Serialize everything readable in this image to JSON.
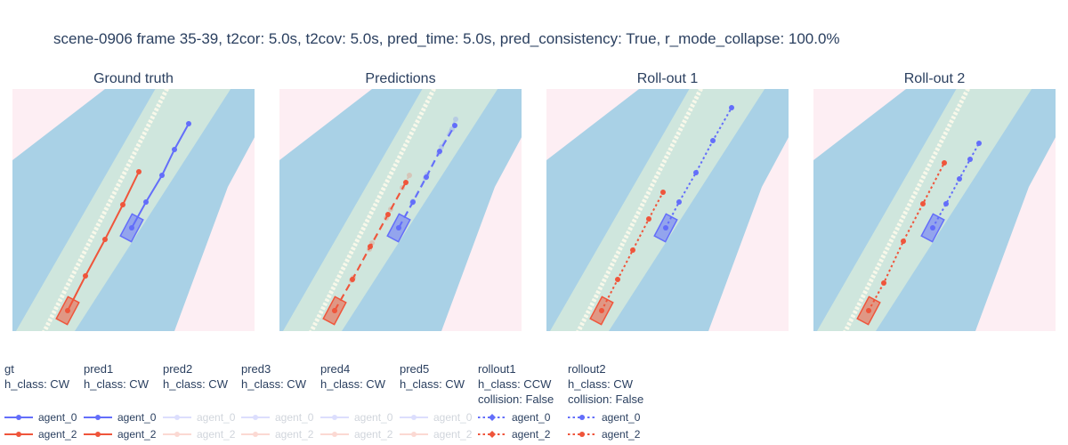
{
  "title": "scene-0906 frame 35-39, t2cor: 5.0s, t2cov: 5.0s, pred_time: 5.0s, pred_consistency: True, r_mode_collapse: 100.0%",
  "colors": {
    "background": "#fdeef3",
    "lane": "#a9d1e6",
    "drivable": "#cfe6dd",
    "divider": "#f8f8ea",
    "agent_0": "#636efa",
    "agent_2": "#ef553b"
  },
  "chart_data": [
    {
      "type": "scatter",
      "title": "Ground truth",
      "series": [
        {
          "name": "agent_0",
          "style": "solid",
          "opacity": 1,
          "x": [
            0.0,
            16.0,
            34.0,
            48.0,
            64.0
          ],
          "y": [
            0.0,
            29.0,
            59.0,
            88.0,
            117.0
          ]
        },
        {
          "name": "agent_2",
          "style": "solid",
          "opacity": 1,
          "x": [
            0.0,
            20.0,
            42.0,
            62.0,
            80.0
          ],
          "y": [
            0.0,
            39.0,
            80.0,
            119.0,
            156.0
          ]
        }
      ]
    },
    {
      "type": "scatter",
      "title": "Predictions",
      "series": [
        {
          "name": "agent_0",
          "style": "dash",
          "opacity": 1,
          "x": [
            0.0,
            16.0,
            31.0,
            46.0,
            63.0
          ],
          "y": [
            0.0,
            29.0,
            57.0,
            86.0,
            115.0
          ]
        },
        {
          "name": "agent_2",
          "style": "dash",
          "opacity": 1,
          "x": [
            0.0,
            20.0,
            40.0,
            60.0,
            80.0
          ],
          "y": [
            0.0,
            35.0,
            72.0,
            108.0,
            144.0
          ]
        },
        {
          "name": "agent_0",
          "style": "dash",
          "opacity": 0.22,
          "x": [
            0.0,
            16.0,
            32.0,
            48.0,
            64.0
          ],
          "y": [
            0.0,
            30.0,
            60.0,
            91.0,
            122.0
          ]
        },
        {
          "name": "agent_0",
          "style": "dash",
          "opacity": 0.22,
          "x": [
            0.0,
            15.0,
            30.0,
            45.0,
            60.0
          ],
          "y": [
            0.0,
            28.0,
            56.0,
            84.0,
            111.0
          ]
        },
        {
          "name": "agent_2",
          "style": "dash",
          "opacity": 0.22,
          "x": [
            0.0,
            21.0,
            42.0,
            63.0,
            84.0
          ],
          "y": [
            0.0,
            37.0,
            76.0,
            114.0,
            152.0
          ]
        },
        {
          "name": "agent_2",
          "style": "dash",
          "opacity": 0.22,
          "x": [
            0.0,
            19.0,
            39.0,
            58.0,
            76.0
          ],
          "y": [
            0.0,
            34.0,
            69.0,
            104.0,
            138.0
          ]
        }
      ]
    },
    {
      "type": "scatter",
      "title": "Roll-out 1",
      "series": [
        {
          "name": "agent_0",
          "style": "dot",
          "opacity": 1,
          "x": [
            0.0,
            15.0,
            34.0,
            53.0,
            74.0
          ],
          "y": [
            0.0,
            29.0,
            62.0,
            98.0,
            135.0
          ]
        },
        {
          "name": "agent_2",
          "style": "dot",
          "opacity": 1,
          "x": [
            0.0,
            18.0,
            35.0,
            53.0,
            69.0
          ],
          "y": [
            0.0,
            35.0,
            68.0,
            103.0,
            133.0
          ]
        }
      ]
    },
    {
      "type": "scatter",
      "title": "Roll-out 2",
      "series": [
        {
          "name": "agent_0",
          "style": "dot",
          "opacity": 1,
          "x": [
            0.0,
            15.0,
            30.0,
            42.0,
            52.0
          ],
          "y": [
            0.0,
            27.0,
            55.0,
            77.0,
            95.0
          ]
        },
        {
          "name": "agent_2",
          "style": "dot",
          "opacity": 1,
          "x": [
            0.0,
            17.0,
            39.0,
            61.0,
            85.0
          ],
          "y": [
            0.0,
            31.0,
            78.0,
            120.0,
            166.0
          ]
        }
      ]
    }
  ],
  "legend": [
    {
      "title": "gt",
      "lines": [
        "h_class: CW"
      ],
      "style": "solid",
      "opacity": 1,
      "items": [
        "agent_0",
        "agent_2"
      ]
    },
    {
      "title": "pred1",
      "lines": [
        "h_class: CW"
      ],
      "style": "solid",
      "opacity": 1,
      "items": [
        "agent_0",
        "agent_2"
      ]
    },
    {
      "title": "pred2",
      "lines": [
        "h_class: CW"
      ],
      "style": "solid",
      "opacity": 0.22,
      "items": [
        "agent_0",
        "agent_2"
      ]
    },
    {
      "title": "pred3",
      "lines": [
        "h_class: CW"
      ],
      "style": "solid",
      "opacity": 0.22,
      "items": [
        "agent_0",
        "agent_2"
      ]
    },
    {
      "title": "pred4",
      "lines": [
        "h_class: CW"
      ],
      "style": "solid",
      "opacity": 0.22,
      "items": [
        "agent_0",
        "agent_2"
      ]
    },
    {
      "title": "pred5",
      "lines": [
        "h_class: CW"
      ],
      "style": "solid",
      "opacity": 0.22,
      "items": [
        "agent_0",
        "agent_2"
      ]
    },
    {
      "title": "rollout1",
      "lines": [
        "h_class: CCW",
        "collision: False"
      ],
      "style": "dot",
      "opacity": 1,
      "marker": "diamond",
      "items": [
        "agent_0",
        "agent_2"
      ]
    },
    {
      "title": "rollout2",
      "lines": [
        "h_class: CW",
        "collision: False"
      ],
      "style": "dot",
      "opacity": 1,
      "items": [
        "agent_0",
        "agent_2"
      ]
    }
  ]
}
